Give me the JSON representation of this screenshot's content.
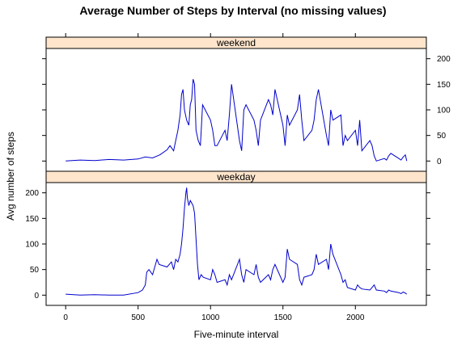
{
  "chart_data": {
    "type": "line",
    "title": "Average Number of Steps by Interval (no missing values)",
    "xlabel": "Five-minute interval",
    "ylabel": "Avg number of steps",
    "xlim": [
      -135,
      2490
    ],
    "ylim": [
      -20,
      220
    ],
    "x_ticks": [
      0,
      500,
      1000,
      1500,
      2000
    ],
    "y_ticks": [
      0,
      50,
      100,
      150,
      200
    ],
    "panels": [
      {
        "name": "weekend",
        "x": [
          0,
          100,
          200,
          300,
          400,
          500,
          550,
          600,
          650,
          700,
          720,
          745,
          760,
          775,
          790,
          800,
          810,
          820,
          835,
          850,
          860,
          870,
          880,
          890,
          900,
          915,
          930,
          945,
          1000,
          1015,
          1030,
          1045,
          1100,
          1115,
          1130,
          1145,
          1200,
          1215,
          1230,
          1245,
          1300,
          1315,
          1330,
          1345,
          1400,
          1415,
          1430,
          1445,
          1500,
          1515,
          1530,
          1545,
          1600,
          1615,
          1630,
          1645,
          1700,
          1715,
          1730,
          1745,
          1800,
          1815,
          1830,
          1845,
          1900,
          1915,
          1930,
          1945,
          2000,
          2015,
          2030,
          2045,
          2100,
          2115,
          2130,
          2145,
          2200,
          2215,
          2230,
          2245,
          2300,
          2315,
          2330,
          2345,
          2355
        ],
        "y": [
          0,
          2,
          1,
          3,
          2,
          4,
          8,
          6,
          12,
          22,
          30,
          20,
          40,
          60,
          90,
          130,
          140,
          100,
          80,
          70,
          110,
          120,
          160,
          150,
          60,
          40,
          30,
          110,
          80,
          60,
          30,
          30,
          60,
          40,
          90,
          150,
          40,
          20,
          100,
          110,
          80,
          60,
          30,
          80,
          120,
          110,
          90,
          140,
          70,
          30,
          90,
          70,
          100,
          130,
          80,
          40,
          60,
          80,
          120,
          140,
          50,
          30,
          100,
          80,
          90,
          30,
          50,
          40,
          60,
          30,
          80,
          20,
          40,
          30,
          10,
          0,
          5,
          2,
          10,
          15,
          5,
          2,
          8,
          12,
          0
        ]
      },
      {
        "name": "weekday",
        "x": [
          0,
          100,
          200,
          300,
          400,
          500,
          530,
          550,
          560,
          575,
          600,
          615,
          630,
          645,
          700,
          715,
          730,
          745,
          760,
          775,
          790,
          800,
          810,
          820,
          830,
          835,
          840,
          850,
          860,
          870,
          880,
          890,
          900,
          910,
          920,
          935,
          950,
          1000,
          1015,
          1030,
          1045,
          1100,
          1115,
          1130,
          1145,
          1200,
          1215,
          1230,
          1245,
          1300,
          1315,
          1330,
          1345,
          1400,
          1415,
          1430,
          1445,
          1500,
          1515,
          1530,
          1545,
          1600,
          1615,
          1630,
          1645,
          1700,
          1715,
          1730,
          1745,
          1800,
          1815,
          1830,
          1845,
          1900,
          1915,
          1930,
          1945,
          2000,
          2015,
          2030,
          2045,
          2100,
          2115,
          2130,
          2145,
          2200,
          2215,
          2230,
          2245,
          2300,
          2315,
          2330,
          2345,
          2355
        ],
        "y": [
          2,
          0,
          1,
          0,
          0,
          5,
          10,
          20,
          45,
          50,
          40,
          55,
          70,
          60,
          55,
          60,
          65,
          50,
          70,
          65,
          80,
          100,
          130,
          170,
          200,
          210,
          190,
          175,
          185,
          180,
          175,
          160,
          110,
          60,
          30,
          40,
          35,
          30,
          50,
          40,
          25,
          30,
          20,
          40,
          30,
          70,
          40,
          25,
          50,
          40,
          60,
          35,
          25,
          40,
          30,
          50,
          60,
          25,
          35,
          90,
          70,
          60,
          30,
          20,
          35,
          40,
          50,
          80,
          60,
          70,
          50,
          100,
          80,
          40,
          25,
          30,
          15,
          10,
          20,
          15,
          12,
          10,
          15,
          20,
          10,
          8,
          5,
          10,
          8,
          5,
          3,
          6,
          4,
          2
        ]
      }
    ]
  }
}
